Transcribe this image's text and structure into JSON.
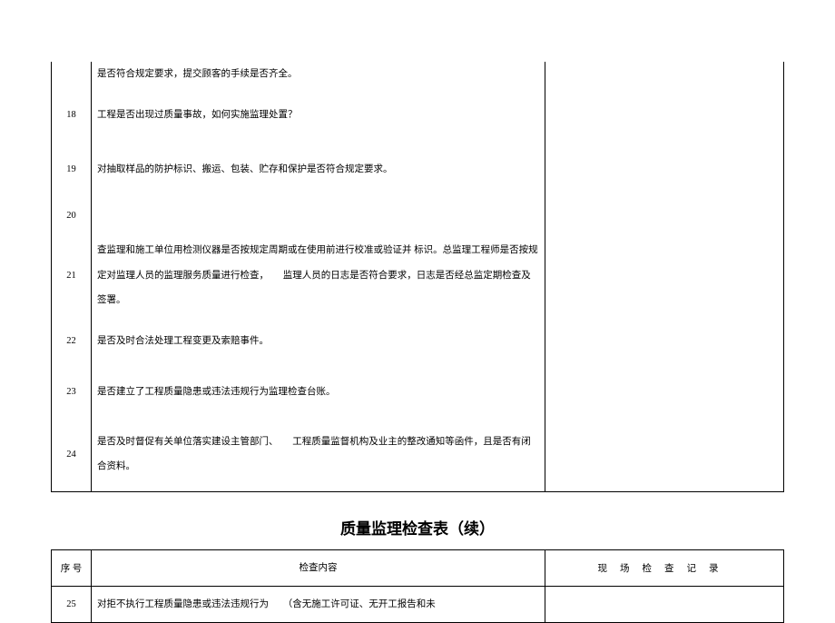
{
  "table1": {
    "rows": [
      {
        "num": "",
        "content": "是否符合规定要求，提交顾客的手续是否齐全。"
      },
      {
        "num": "18",
        "content": "工程是否出现过质量事故，如何实施监理处置？"
      },
      {
        "num": "19",
        "content": "对抽取样品的防护标识、搬运、包装、贮存和保护是否符合规定要求。"
      },
      {
        "num": "20",
        "content": ""
      },
      {
        "num": "21",
        "content": "查监理和施工单位用检测仪器是否按规定周期或在使用前进行校准或验证并 标识。总监理工程师是否按规定对监理人员的监理服务质量进行检查，　　监理人员的日志是否符合要求，日志是否经总监定期检查及签署。"
      },
      {
        "num": "22",
        "content": "是否及时合法处理工程变更及索赔事件。"
      },
      {
        "num": "23",
        "content": "是否建立了工程质量隐患或违法违规行为监理检查台账。"
      },
      {
        "num": "24",
        "content": "是否及时督促有关单位落实建设主管部门、　　工程质量监督机构及业主的整改通知等函件，且是否有闭合资料。"
      }
    ]
  },
  "title": "质量监理检查表（续）",
  "table2": {
    "header": {
      "col1": "序 号",
      "col2": "检查内容",
      "col3": "现场检查记录"
    },
    "rows": [
      {
        "num": "25",
        "content": "对拒不执行工程质量隐患或违法违规行为　　（含无施工许可证、无开工报告和未"
      }
    ]
  },
  "style": {
    "font_size_body": 10.5,
    "font_size_title": 17,
    "border_color": "#000000",
    "background_color": "#ffffff",
    "text_color": "#000000"
  }
}
